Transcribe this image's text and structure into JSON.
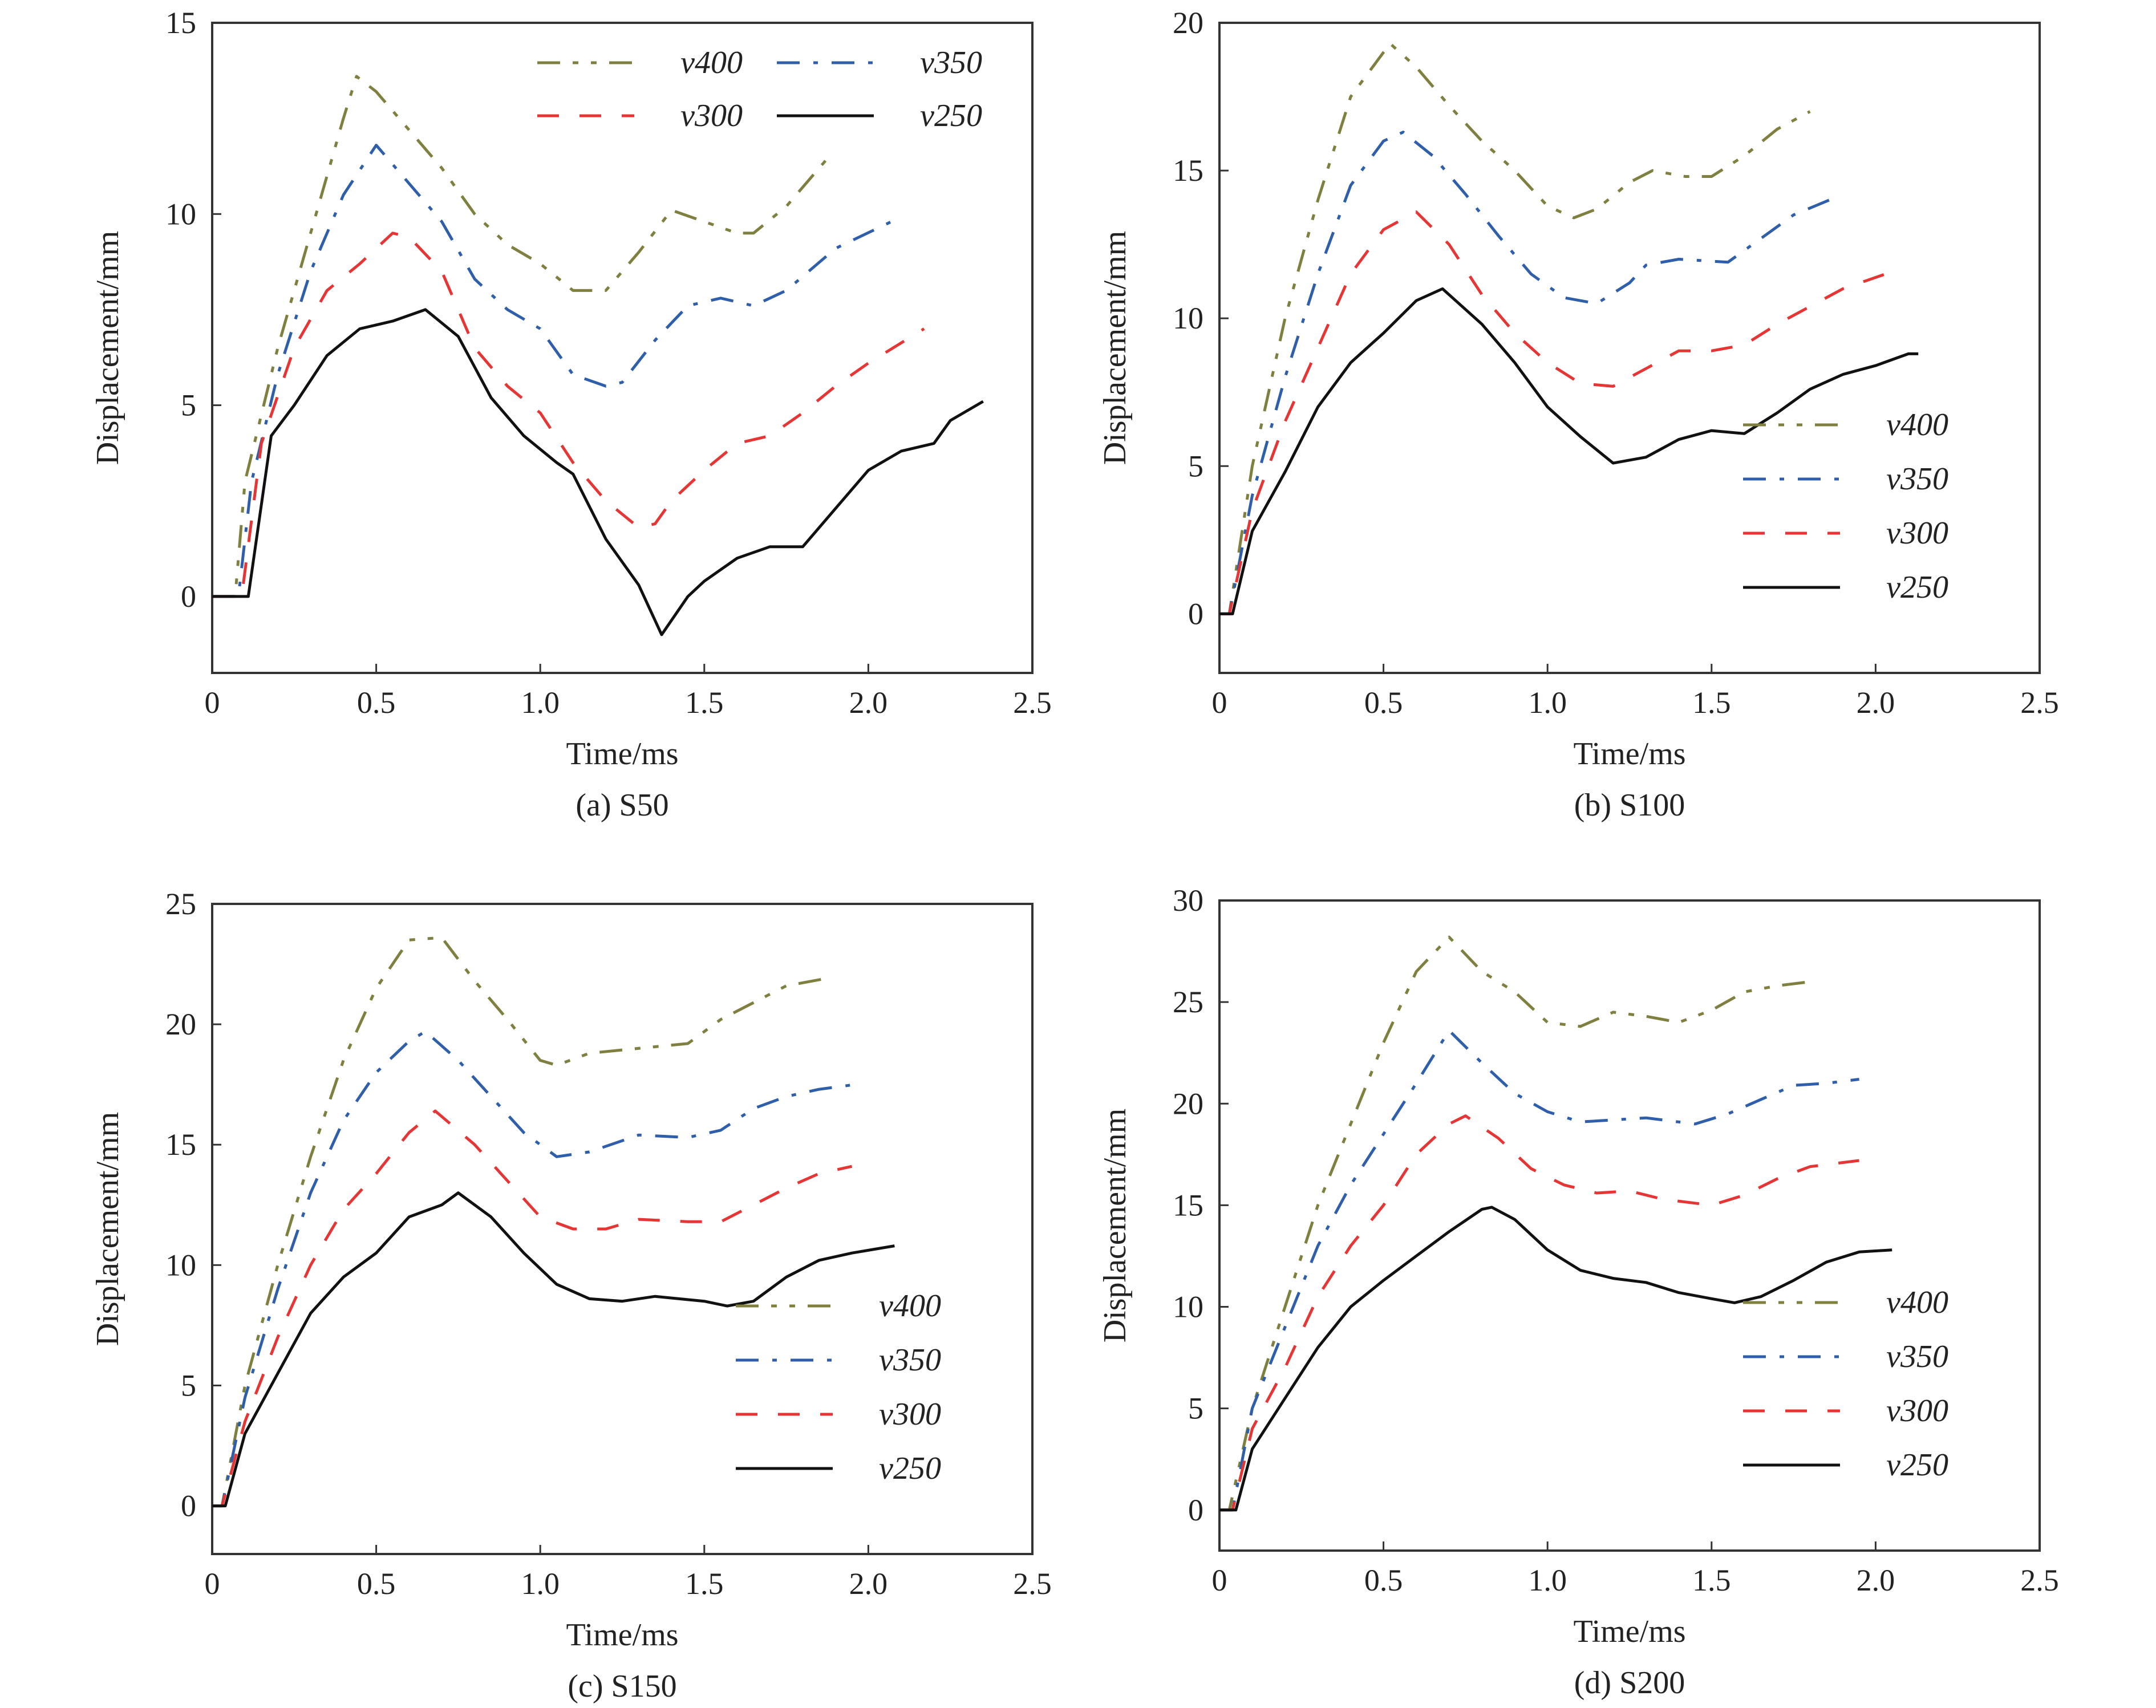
{
  "figure": {
    "series_styles": {
      "v400": {
        "color": "#7f8040",
        "dash": "dash-dot-dot"
      },
      "v350": {
        "color": "#2f5fab",
        "dash": "dash-dot"
      },
      "v300": {
        "color": "#e53535",
        "dash": "dashed"
      },
      "v250": {
        "color": "#111111",
        "dash": "solid"
      }
    }
  },
  "chart_data": [
    {
      "type": "line",
      "title": "(a) S50",
      "xlabel": "Time/ms",
      "ylabel": "Displacement/mm",
      "xlim": [
        0,
        2.5
      ],
      "ylim": [
        -2,
        15
      ],
      "xticks": [
        0,
        0.5,
        1.0,
        1.5,
        2.0,
        2.5
      ],
      "xtick_labels": [
        "0",
        "0.5",
        "1.0",
        "1.5",
        "2.0",
        "2.5"
      ],
      "yticks": [
        0,
        5,
        10,
        15
      ],
      "ytick_labels": [
        "0",
        "5",
        "10",
        "15"
      ],
      "legend": {
        "placement": "top-right",
        "columns": 2,
        "order": [
          "v400",
          "v350",
          "v300",
          "v250"
        ]
      },
      "series": [
        {
          "name": "v400",
          "x": [
            0,
            0.07,
            0.1,
            0.2,
            0.3,
            0.4,
            0.44,
            0.5,
            0.6,
            0.7,
            0.8,
            0.9,
            1.0,
            1.1,
            1.2,
            1.3,
            1.4,
            1.5,
            1.6,
            1.65,
            1.75,
            1.87
          ],
          "y": [
            0,
            0,
            3,
            6.5,
            9.5,
            12.5,
            13.6,
            13.2,
            12.2,
            11.2,
            10,
            9.2,
            8.7,
            8.0,
            8.0,
            9.0,
            10.1,
            9.8,
            9.5,
            9.5,
            10.2,
            11.4
          ]
        },
        {
          "name": "v350",
          "x": [
            0,
            0.08,
            0.12,
            0.2,
            0.3,
            0.4,
            0.5,
            0.6,
            0.7,
            0.8,
            0.9,
            1.0,
            1.1,
            1.2,
            1.25,
            1.35,
            1.45,
            1.55,
            1.65,
            1.75,
            1.9,
            2.07
          ],
          "y": [
            0,
            0,
            3,
            5.8,
            8.5,
            10.5,
            11.8,
            10.8,
            9.8,
            8.3,
            7.5,
            7.0,
            5.8,
            5.5,
            5.6,
            6.7,
            7.6,
            7.8,
            7.6,
            8.0,
            9.1,
            9.8
          ]
        },
        {
          "name": "v300",
          "x": [
            0,
            0.09,
            0.15,
            0.25,
            0.35,
            0.45,
            0.55,
            0.6,
            0.7,
            0.8,
            0.9,
            1.0,
            1.1,
            1.2,
            1.3,
            1.35,
            1.4,
            1.5,
            1.6,
            1.7,
            1.8,
            1.9,
            2.0,
            2.17
          ],
          "y": [
            0,
            0,
            4,
            6.5,
            8,
            8.7,
            9.5,
            9.4,
            8.5,
            6.5,
            5.5,
            4.8,
            3.5,
            2.5,
            1.8,
            1.9,
            2.5,
            3.3,
            4.0,
            4.2,
            4.8,
            5.5,
            6.1,
            7.0
          ]
        },
        {
          "name": "v250",
          "x": [
            0,
            0.11,
            0.18,
            0.25,
            0.35,
            0.45,
            0.55,
            0.65,
            0.75,
            0.85,
            0.95,
            1.05,
            1.1,
            1.2,
            1.3,
            1.37,
            1.45,
            1.5,
            1.6,
            1.7,
            1.8,
            1.9,
            2.0,
            2.1,
            2.2,
            2.25,
            2.35
          ],
          "y": [
            0,
            0,
            4.2,
            5,
            6.3,
            7,
            7.2,
            7.5,
            6.8,
            5.2,
            4.2,
            3.5,
            3.2,
            1.5,
            0.3,
            -1.0,
            0,
            0.4,
            1.0,
            1.3,
            1.3,
            2.3,
            3.3,
            3.8,
            4.0,
            4.6,
            5.1
          ]
        }
      ]
    },
    {
      "type": "line",
      "title": "(b) S100",
      "xlabel": "Time/ms",
      "ylabel": "Displacement/mm",
      "xlim": [
        0,
        2.5
      ],
      "ylim": [
        -2,
        20
      ],
      "xticks": [
        0,
        0.5,
        1.0,
        1.5,
        2.0,
        2.5
      ],
      "xtick_labels": [
        "0",
        "0.5",
        "1.0",
        "1.5",
        "2.0",
        "2.5"
      ],
      "yticks": [
        0,
        5,
        10,
        15,
        20
      ],
      "ytick_labels": [
        "0",
        "5",
        "10",
        "15",
        "20"
      ],
      "legend": {
        "placement": "bottom-right",
        "columns": 1,
        "order": [
          "v400",
          "v350",
          "v300",
          "v250"
        ]
      },
      "series": [
        {
          "name": "v400",
          "x": [
            0,
            0.03,
            0.1,
            0.2,
            0.3,
            0.4,
            0.52,
            0.6,
            0.7,
            0.8,
            0.9,
            1.0,
            1.08,
            1.15,
            1.25,
            1.32,
            1.42,
            1.5,
            1.6,
            1.7,
            1.8
          ],
          "y": [
            0,
            0,
            5,
            10,
            14,
            17.5,
            19.3,
            18.5,
            17.2,
            16,
            15,
            13.8,
            13.4,
            13.7,
            14.6,
            15.0,
            14.8,
            14.8,
            15.5,
            16.4,
            17.0
          ]
        },
        {
          "name": "v350",
          "x": [
            0,
            0.03,
            0.1,
            0.2,
            0.3,
            0.4,
            0.5,
            0.56,
            0.65,
            0.75,
            0.85,
            0.95,
            1.05,
            1.15,
            1.25,
            1.3,
            1.4,
            1.55,
            1.65,
            1.75,
            1.88
          ],
          "y": [
            0,
            0,
            4,
            8,
            11.5,
            14.5,
            16,
            16.3,
            15.5,
            14.2,
            12.8,
            11.5,
            10.7,
            10.5,
            11.2,
            11.8,
            12.0,
            11.9,
            12.7,
            13.5,
            14.1
          ]
        },
        {
          "name": "v300",
          "x": [
            0,
            0.03,
            0.1,
            0.2,
            0.3,
            0.4,
            0.5,
            0.6,
            0.7,
            0.8,
            0.9,
            1.0,
            1.1,
            1.2,
            1.3,
            1.4,
            1.5,
            1.6,
            1.7,
            1.8,
            1.9,
            2.03
          ],
          "y": [
            0,
            0,
            3.5,
            6.5,
            9,
            11.5,
            13,
            13.6,
            12.5,
            10.8,
            9.5,
            8.5,
            7.8,
            7.7,
            8.3,
            8.9,
            8.9,
            9.1,
            9.8,
            10.4,
            11.0,
            11.5
          ]
        },
        {
          "name": "v250",
          "x": [
            0,
            0.04,
            0.1,
            0.2,
            0.3,
            0.4,
            0.5,
            0.6,
            0.68,
            0.8,
            0.9,
            1.0,
            1.1,
            1.2,
            1.3,
            1.4,
            1.5,
            1.6,
            1.7,
            1.8,
            1.9,
            2.0,
            2.1,
            2.13
          ],
          "y": [
            0,
            0,
            2.8,
            4.8,
            7,
            8.5,
            9.5,
            10.6,
            11,
            9.8,
            8.5,
            7.0,
            6.0,
            5.1,
            5.3,
            5.9,
            6.2,
            6.1,
            6.8,
            7.6,
            8.1,
            8.4,
            8.8,
            8.8
          ]
        }
      ]
    },
    {
      "type": "line",
      "title": "(c) S150",
      "xlabel": "Time/ms",
      "ylabel": "Displacement/mm",
      "xlim": [
        0,
        2.5
      ],
      "ylim": [
        -2,
        25
      ],
      "xticks": [
        0,
        0.5,
        1.0,
        1.5,
        2.0,
        2.5
      ],
      "xtick_labels": [
        "0",
        "0.5",
        "1.0",
        "1.5",
        "2.0",
        "2.5"
      ],
      "yticks": [
        0,
        5,
        10,
        15,
        20,
        25
      ],
      "ytick_labels": [
        "0",
        "5",
        "10",
        "15",
        "20",
        "25"
      ],
      "legend": {
        "placement": "bottom-right",
        "columns": 1,
        "order": [
          "v400",
          "v350",
          "v300",
          "v250"
        ]
      },
      "series": [
        {
          "name": "v400",
          "x": [
            0,
            0.03,
            0.1,
            0.2,
            0.3,
            0.4,
            0.5,
            0.6,
            0.7,
            0.8,
            0.9,
            1.0,
            1.05,
            1.15,
            1.3,
            1.45,
            1.55,
            1.65,
            1.75,
            1.87
          ],
          "y": [
            0,
            0,
            5,
            10,
            14.5,
            18.5,
            21.5,
            23.5,
            23.6,
            21.8,
            20.2,
            18.5,
            18.3,
            18.8,
            19.0,
            19.2,
            20.2,
            20.9,
            21.6,
            21.9
          ]
        },
        {
          "name": "v350",
          "x": [
            0,
            0.03,
            0.1,
            0.2,
            0.3,
            0.4,
            0.5,
            0.6,
            0.65,
            0.75,
            0.85,
            0.95,
            1.05,
            1.15,
            1.3,
            1.45,
            1.55,
            1.65,
            1.75,
            1.85,
            1.96
          ],
          "y": [
            0,
            0,
            4.5,
            9,
            13,
            16,
            18,
            19.3,
            19.7,
            18.5,
            17,
            15.5,
            14.5,
            14.7,
            15.4,
            15.3,
            15.6,
            16.5,
            17.0,
            17.3,
            17.5
          ]
        },
        {
          "name": "v300",
          "x": [
            0,
            0.03,
            0.1,
            0.2,
            0.3,
            0.4,
            0.5,
            0.6,
            0.68,
            0.8,
            0.9,
            1.0,
            1.1,
            1.2,
            1.3,
            1.45,
            1.55,
            1.65,
            1.75,
            1.85,
            1.95
          ],
          "y": [
            0,
            0,
            3.5,
            7,
            10,
            12.3,
            13.8,
            15.5,
            16.4,
            15,
            13.5,
            12,
            11.5,
            11.5,
            11.9,
            11.8,
            11.8,
            12.5,
            13.2,
            13.8,
            14.1
          ]
        },
        {
          "name": "v250",
          "x": [
            0,
            0.04,
            0.1,
            0.2,
            0.3,
            0.4,
            0.5,
            0.6,
            0.7,
            0.75,
            0.85,
            0.95,
            1.05,
            1.15,
            1.25,
            1.35,
            1.5,
            1.57,
            1.65,
            1.75,
            1.85,
            1.95,
            2.08
          ],
          "y": [
            0,
            0,
            3,
            5.5,
            8,
            9.5,
            10.5,
            12,
            12.5,
            13,
            12,
            10.5,
            9.2,
            8.6,
            8.5,
            8.7,
            8.5,
            8.3,
            8.5,
            9.5,
            10.2,
            10.5,
            10.8
          ]
        }
      ]
    },
    {
      "type": "line",
      "title": "(d) S200",
      "xlabel": "Time/ms",
      "ylabel": "Displacement/mm",
      "xlim": [
        0,
        2.5
      ],
      "ylim": [
        -2,
        30
      ],
      "xticks": [
        0,
        0.5,
        1.0,
        1.5,
        2.0,
        2.5
      ],
      "xtick_labels": [
        "0",
        "0.5",
        "1.0",
        "1.5",
        "2.0",
        "2.5"
      ],
      "yticks": [
        0,
        5,
        10,
        15,
        20,
        25,
        30
      ],
      "ytick_labels": [
        "0",
        "5",
        "10",
        "15",
        "20",
        "25",
        "30"
      ],
      "legend": {
        "placement": "bottom-right",
        "columns": 1,
        "order": [
          "v400",
          "v350",
          "v300",
          "v250"
        ]
      },
      "series": [
        {
          "name": "v400",
          "x": [
            0,
            0.03,
            0.1,
            0.2,
            0.3,
            0.4,
            0.5,
            0.6,
            0.7,
            0.8,
            0.9,
            1.0,
            1.1,
            1.2,
            1.3,
            1.4,
            1.5,
            1.6,
            1.7,
            1.8
          ],
          "y": [
            0,
            0,
            5,
            10,
            15,
            19,
            23,
            26.5,
            28.2,
            26.5,
            25.5,
            24,
            23.8,
            24.5,
            24.3,
            24.0,
            24.6,
            25.5,
            25.8,
            26.0
          ]
        },
        {
          "name": "v350",
          "x": [
            0,
            0.04,
            0.1,
            0.2,
            0.3,
            0.4,
            0.5,
            0.6,
            0.7,
            0.8,
            0.9,
            1.0,
            1.1,
            1.2,
            1.3,
            1.45,
            1.55,
            1.65,
            1.75,
            1.85,
            1.95
          ],
          "y": [
            0,
            0,
            5,
            9,
            13,
            16,
            18.5,
            21,
            23.6,
            22,
            20.5,
            19.6,
            19.1,
            19.2,
            19.3,
            19.0,
            19.5,
            20.2,
            20.9,
            21.0,
            21.2
          ]
        },
        {
          "name": "v300",
          "x": [
            0,
            0.04,
            0.1,
            0.2,
            0.3,
            0.4,
            0.5,
            0.6,
            0.7,
            0.75,
            0.85,
            0.95,
            1.05,
            1.15,
            1.25,
            1.35,
            1.5,
            1.6,
            1.7,
            1.8,
            1.95
          ],
          "y": [
            0,
            0,
            4,
            7,
            10.5,
            13,
            15,
            17.5,
            19,
            19.4,
            18.3,
            16.8,
            16,
            15.6,
            15.7,
            15.3,
            15.0,
            15.5,
            16.3,
            16.9,
            17.2
          ]
        },
        {
          "name": "v250",
          "x": [
            0,
            0.05,
            0.1,
            0.2,
            0.3,
            0.4,
            0.5,
            0.6,
            0.7,
            0.8,
            0.83,
            0.9,
            1.0,
            1.1,
            1.2,
            1.3,
            1.4,
            1.5,
            1.57,
            1.65,
            1.75,
            1.85,
            1.95,
            2.05
          ],
          "y": [
            0,
            0,
            3,
            5.5,
            8,
            10,
            11.3,
            12.5,
            13.7,
            14.8,
            14.9,
            14.3,
            12.8,
            11.8,
            11.4,
            11.2,
            10.7,
            10.4,
            10.2,
            10.5,
            11.3,
            12.2,
            12.7,
            12.8
          ]
        }
      ]
    }
  ]
}
